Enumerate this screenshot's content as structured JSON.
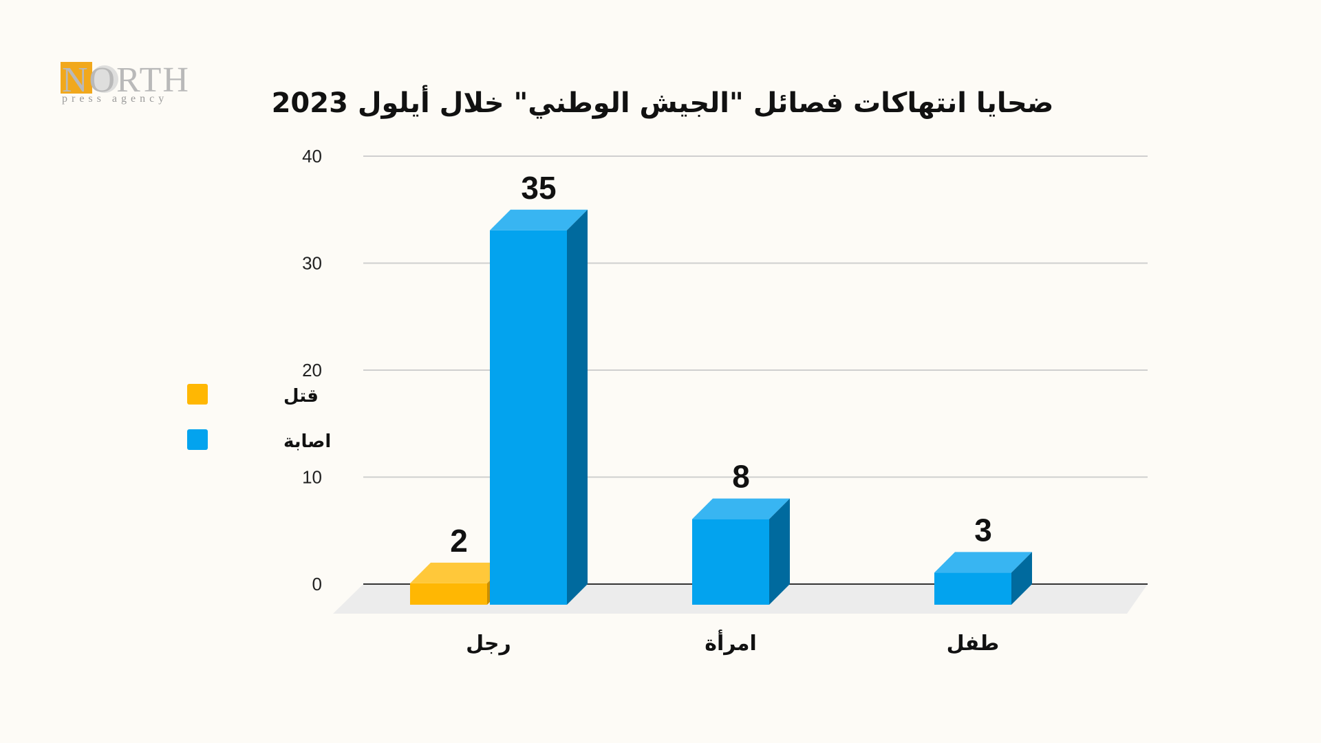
{
  "logo": {
    "name": "NORTH",
    "tagline": "press agency"
  },
  "colors": {
    "killed": "#ffb703",
    "killed_top": "#ffc83a",
    "killed_side": "#c98e00",
    "injured": "#03a3ee",
    "injured_top": "#38b5f2",
    "injured_side": "#006a9e",
    "floor": "#ececec",
    "grid": "#cfcfcf",
    "axis": "#333333"
  },
  "chart_data": {
    "type": "bar",
    "title": "ضحايا انتهاكات فصائل \"الجيش الوطني\" خلال أيلول 2023",
    "categories": [
      "رجل",
      "امرأة",
      "طفل"
    ],
    "series": [
      {
        "name": "قتل",
        "color": "killed",
        "values": [
          2,
          0,
          0
        ]
      },
      {
        "name": "اصابة",
        "color": "injured",
        "values": [
          35,
          8,
          3
        ]
      }
    ],
    "data_labels": [
      {
        "series": 0,
        "category": 0,
        "text": "2"
      },
      {
        "series": 1,
        "category": 0,
        "text": "35"
      },
      {
        "series": 1,
        "category": 1,
        "text": "8"
      },
      {
        "series": 1,
        "category": 2,
        "text": "3"
      }
    ],
    "ylim": [
      0,
      40
    ],
    "yticks": [
      0,
      10,
      20,
      30,
      40
    ],
    "grid": true,
    "legend": "left",
    "xlabel": "",
    "ylabel": ""
  }
}
